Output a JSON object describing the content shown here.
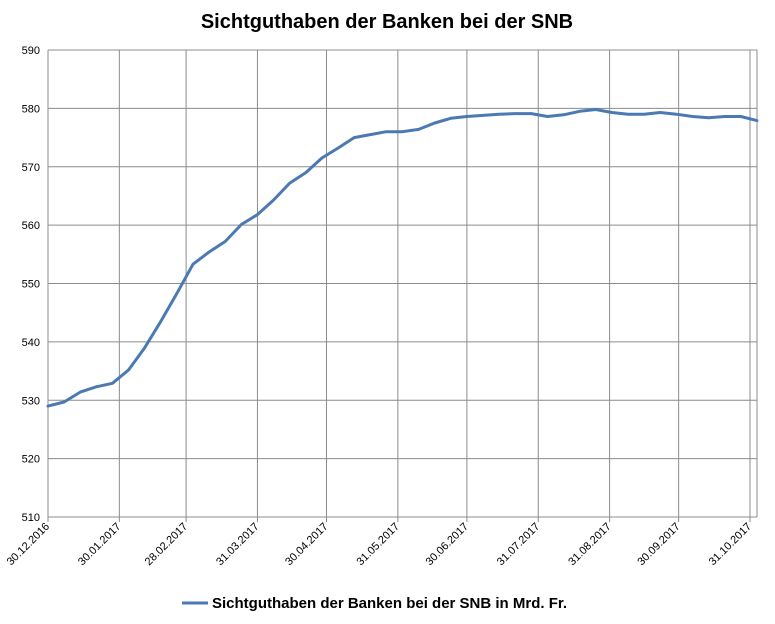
{
  "chart_data": {
    "type": "line",
    "title": "Sichtguthaben der Banken bei der SNB",
    "xlabel": "",
    "ylabel": "",
    "ylim": [
      510,
      590
    ],
    "yticks": [
      510,
      520,
      530,
      540,
      550,
      560,
      570,
      580,
      590
    ],
    "xlim": [
      "30.12.2016",
      "31.10.2017"
    ],
    "xtick_labels": [
      "30.12.2016",
      "30.01.2017",
      "28.02.2017",
      "31.03.2017",
      "30.04.2017",
      "31.05.2017",
      "30.06.2017",
      "31.07.2017",
      "31.08.2017",
      "30.09.2017",
      "31.10.2017"
    ],
    "grid": true,
    "legend_position": "bottom",
    "series": [
      {
        "name": "Sichtguthaben der Banken bei der SNB in Mrd. Fr.",
        "color": "#4a7ab1",
        "x": [
          "30.12.2016",
          "06.01.2017",
          "13.01.2017",
          "20.01.2017",
          "27.01.2017",
          "03.02.2017",
          "10.02.2017",
          "17.02.2017",
          "24.02.2017",
          "03.03.2017",
          "10.03.2017",
          "17.03.2017",
          "24.03.2017",
          "31.03.2017",
          "07.04.2017",
          "14.04.2017",
          "21.04.2017",
          "28.04.2017",
          "05.05.2017",
          "12.05.2017",
          "19.05.2017",
          "26.05.2017",
          "02.06.2017",
          "09.06.2017",
          "16.06.2017",
          "23.06.2017",
          "30.06.2017",
          "07.07.2017",
          "14.07.2017",
          "21.07.2017",
          "28.07.2017",
          "04.08.2017",
          "11.08.2017",
          "18.08.2017",
          "25.08.2017",
          "01.09.2017",
          "08.09.2017",
          "15.09.2017",
          "22.09.2017",
          "29.09.2017",
          "06.10.2017",
          "13.10.2017",
          "20.10.2017",
          "27.10.2017",
          "03.11.2017"
        ],
        "values": [
          529.0,
          529.7,
          531.4,
          532.3,
          532.9,
          535.2,
          539.0,
          543.5,
          548.3,
          553.3,
          555.4,
          557.2,
          560.1,
          561.8,
          564.3,
          567.2,
          569.0,
          571.5,
          573.2,
          575.0,
          575.5,
          576.0,
          576.0,
          576.4,
          577.5,
          578.3,
          578.6,
          578.8,
          579.0,
          579.1,
          579.1,
          578.6,
          578.9,
          579.5,
          579.8,
          579.3,
          579.0,
          579.0,
          579.3,
          579.0,
          578.6,
          578.4,
          578.6,
          578.6,
          577.9
        ]
      }
    ]
  }
}
